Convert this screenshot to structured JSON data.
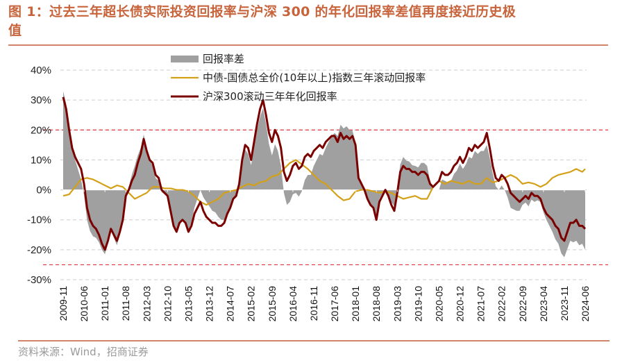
{
  "title": "图 1：过去三年超长债实际投资回报率与沪深 300 的年化回报率差值再度接近历史极值",
  "title_line1": "图 1：过去三年超长债实际投资回报率与沪深 300 的年化回报率差值再度接近历史极",
  "title_line2": "值",
  "source": "资料来源：Wind，招商证券",
  "colors": {
    "diff_fill": "#a0a0a0",
    "bond_line": "#d4a017",
    "equity_line": "#7a0000",
    "ref_line": "#e8323c",
    "grid": "#cccccc",
    "title": "#c8643c"
  },
  "chart_data": {
    "type": "area",
    "title": "过去三年超长债实际投资回报率与沪深300的年化回报率差值",
    "xlabel": "",
    "ylabel": "",
    "ylim": [
      -30,
      40
    ],
    "yticks": [
      40,
      30,
      20,
      10,
      0,
      -10,
      -20,
      -30
    ],
    "ytick_labels": [
      "40%",
      "30%",
      "20%",
      "10%",
      "0%",
      "-10%",
      "-20%",
      "-30%"
    ],
    "reference_lines": [
      20,
      -25
    ],
    "grid": true,
    "legend_position": "top-center",
    "x_start": "2009-11",
    "x_end": "2024-06",
    "x_tick_labels": [
      "2009-11",
      "2010-06",
      "2011-01",
      "2011-08",
      "2012-03",
      "2012-10",
      "2013-05",
      "2013-12",
      "2014-07",
      "2015-02",
      "2015-09",
      "2016-04",
      "2016-11",
      "2017-06",
      "2018-01",
      "2018-08",
      "2019-03",
      "2019-10",
      "2020-05",
      "2020-12",
      "2021-07",
      "2022-02",
      "2022-09",
      "2023-04",
      "2023-11",
      "2024-06"
    ],
    "legend": [
      "回报率差",
      "中债-国债总全价(10年以上)指数三年滚动回报率",
      "沪深300滚动三年年化回报率"
    ],
    "series": [
      {
        "name": "沪深300滚动三年年化回报率",
        "type": "line",
        "anchors": [
          [
            "2009-11",
            31
          ],
          [
            "2009-12",
            27
          ],
          [
            "2010-01",
            20
          ],
          [
            "2010-02",
            14
          ],
          [
            "2010-03",
            11
          ],
          [
            "2010-04",
            9
          ],
          [
            "2010-05",
            7
          ],
          [
            "2010-06",
            2
          ],
          [
            "2010-07",
            -6
          ],
          [
            "2010-08",
            -10
          ],
          [
            "2010-09",
            -12
          ],
          [
            "2010-10",
            -13
          ],
          [
            "2010-11",
            -15
          ],
          [
            "2010-12",
            -18
          ],
          [
            "2011-01",
            -20
          ],
          [
            "2011-02",
            -17
          ],
          [
            "2011-03",
            -13
          ],
          [
            "2011-04",
            -15
          ],
          [
            "2011-05",
            -17
          ],
          [
            "2011-06",
            -14
          ],
          [
            "2011-07",
            -10
          ],
          [
            "2011-08",
            -2
          ],
          [
            "2011-09",
            0
          ],
          [
            "2011-10",
            3
          ],
          [
            "2011-11",
            5
          ],
          [
            "2011-12",
            9
          ],
          [
            "2012-01",
            12
          ],
          [
            "2012-02",
            17
          ],
          [
            "2012-03",
            13
          ],
          [
            "2012-04",
            10
          ],
          [
            "2012-05",
            9
          ],
          [
            "2012-06",
            5
          ],
          [
            "2012-07",
            4
          ],
          [
            "2012-08",
            0
          ],
          [
            "2012-09",
            -1
          ],
          [
            "2012-10",
            -2
          ],
          [
            "2012-11",
            -7
          ],
          [
            "2012-12",
            -12
          ],
          [
            "2013-01",
            -14
          ],
          [
            "2013-02",
            -11
          ],
          [
            "2013-03",
            -10
          ],
          [
            "2013-04",
            -11
          ],
          [
            "2013-05",
            -14
          ],
          [
            "2013-06",
            -12
          ],
          [
            "2013-07",
            -8
          ],
          [
            "2013-08",
            -6
          ],
          [
            "2013-09",
            -4
          ],
          [
            "2013-10",
            -7
          ],
          [
            "2013-11",
            -9
          ],
          [
            "2013-12",
            -10
          ],
          [
            "2014-01",
            -11
          ],
          [
            "2014-02",
            -11
          ],
          [
            "2014-03",
            -12
          ],
          [
            "2014-04",
            -12
          ],
          [
            "2014-05",
            -11
          ],
          [
            "2014-06",
            -8
          ],
          [
            "2014-07",
            -6
          ],
          [
            "2014-08",
            -3
          ],
          [
            "2014-09",
            -2
          ],
          [
            "2014-10",
            2
          ],
          [
            "2014-11",
            10
          ],
          [
            "2014-12",
            15
          ],
          [
            "2015-01",
            14
          ],
          [
            "2015-02",
            10
          ],
          [
            "2015-03",
            16
          ],
          [
            "2015-04",
            22
          ],
          [
            "2015-05",
            27
          ],
          [
            "2015-06",
            30
          ],
          [
            "2015-07",
            25
          ],
          [
            "2015-08",
            19
          ],
          [
            "2015-09",
            16
          ],
          [
            "2015-10",
            20
          ],
          [
            "2015-11",
            18
          ],
          [
            "2015-12",
            14
          ],
          [
            "2016-01",
            6
          ],
          [
            "2016-02",
            3
          ],
          [
            "2016-03",
            5
          ],
          [
            "2016-04",
            8
          ],
          [
            "2016-05",
            9
          ],
          [
            "2016-06",
            7
          ],
          [
            "2016-07",
            8
          ],
          [
            "2016-08",
            11
          ],
          [
            "2016-09",
            12
          ],
          [
            "2016-10",
            11
          ],
          [
            "2016-11",
            13
          ],
          [
            "2016-12",
            14
          ],
          [
            "2017-01",
            15
          ],
          [
            "2017-02",
            14
          ],
          [
            "2017-03",
            16
          ],
          [
            "2017-04",
            17
          ],
          [
            "2017-05",
            18
          ],
          [
            "2017-06",
            18
          ],
          [
            "2017-07",
            16
          ],
          [
            "2017-08",
            19
          ],
          [
            "2017-09",
            17
          ],
          [
            "2017-10",
            18
          ],
          [
            "2017-11",
            17
          ],
          [
            "2017-12",
            18
          ],
          [
            "2018-01",
            15
          ],
          [
            "2018-02",
            4
          ],
          [
            "2018-03",
            2
          ],
          [
            "2018-04",
            0
          ],
          [
            "2018-05",
            -3
          ],
          [
            "2018-06",
            -5
          ],
          [
            "2018-07",
            -6
          ],
          [
            "2018-08",
            -10
          ],
          [
            "2018-09",
            -4
          ],
          [
            "2018-10",
            -2
          ],
          [
            "2018-11",
            0
          ],
          [
            "2018-12",
            -2
          ],
          [
            "2019-01",
            -5
          ],
          [
            "2019-02",
            -7
          ],
          [
            "2019-03",
            -1
          ],
          [
            "2019-04",
            6
          ],
          [
            "2019-05",
            8
          ],
          [
            "2019-06",
            7
          ],
          [
            "2019-07",
            7
          ],
          [
            "2019-08",
            6
          ],
          [
            "2019-09",
            6
          ],
          [
            "2019-10",
            5
          ],
          [
            "2019-11",
            6
          ],
          [
            "2019-12",
            6
          ],
          [
            "2020-01",
            5
          ],
          [
            "2020-02",
            2
          ],
          [
            "2020-03",
            1
          ],
          [
            "2020-04",
            2
          ],
          [
            "2020-05",
            3
          ],
          [
            "2020-06",
            6
          ],
          [
            "2020-07",
            5
          ],
          [
            "2020-08",
            5
          ],
          [
            "2020-09",
            6
          ],
          [
            "2020-10",
            8
          ],
          [
            "2020-11",
            9
          ],
          [
            "2020-12",
            11
          ],
          [
            "2021-01",
            9
          ],
          [
            "2021-02",
            11
          ],
          [
            "2021-03",
            14
          ],
          [
            "2021-04",
            13
          ],
          [
            "2021-05",
            15
          ],
          [
            "2021-06",
            14
          ],
          [
            "2021-07",
            15
          ],
          [
            "2021-08",
            16
          ],
          [
            "2021-09",
            19
          ],
          [
            "2021-10",
            14
          ],
          [
            "2021-11",
            8
          ],
          [
            "2021-12",
            4
          ],
          [
            "2022-01",
            3
          ],
          [
            "2022-02",
            5
          ],
          [
            "2022-03",
            4
          ],
          [
            "2022-04",
            2
          ],
          [
            "2022-05",
            -1
          ],
          [
            "2022-06",
            -2
          ],
          [
            "2022-07",
            -3
          ],
          [
            "2022-08",
            -4
          ],
          [
            "2022-09",
            -3
          ],
          [
            "2022-10",
            -2
          ],
          [
            "2022-11",
            -3
          ],
          [
            "2022-12",
            -1
          ],
          [
            "2023-01",
            -2
          ],
          [
            "2023-02",
            -2
          ],
          [
            "2023-03",
            -3
          ],
          [
            "2023-04",
            -6
          ],
          [
            "2023-05",
            -8
          ],
          [
            "2023-06",
            -9
          ],
          [
            "2023-07",
            -10
          ],
          [
            "2023-08",
            -12
          ],
          [
            "2023-09",
            -13
          ],
          [
            "2023-10",
            -16
          ],
          [
            "2023-11",
            -17
          ],
          [
            "2023-12",
            -14
          ],
          [
            "2024-01",
            -11
          ],
          [
            "2024-02",
            -11
          ],
          [
            "2024-03",
            -10
          ],
          [
            "2024-04",
            -12
          ],
          [
            "2024-05",
            -12
          ],
          [
            "2024-06",
            -13
          ]
        ]
      },
      {
        "name": "中债-国债总全价(10年以上)指数三年滚动回报率",
        "type": "line",
        "anchors": [
          [
            "2009-11",
            -2
          ],
          [
            "2010-01",
            -1.5
          ],
          [
            "2010-03",
            1
          ],
          [
            "2010-05",
            3.5
          ],
          [
            "2010-07",
            4
          ],
          [
            "2010-09",
            3.5
          ],
          [
            "2010-11",
            2.5
          ],
          [
            "2011-01",
            1.5
          ],
          [
            "2011-03",
            0.5
          ],
          [
            "2011-05",
            1.5
          ],
          [
            "2011-07",
            1
          ],
          [
            "2011-09",
            -1
          ],
          [
            "2011-11",
            -3
          ],
          [
            "2012-01",
            -2
          ],
          [
            "2012-03",
            -1
          ],
          [
            "2012-05",
            1
          ],
          [
            "2012-07",
            1
          ],
          [
            "2012-09",
            0.5
          ],
          [
            "2012-11",
            0.5
          ],
          [
            "2013-01",
            0
          ],
          [
            "2013-03",
            0
          ],
          [
            "2013-05",
            -0.5
          ],
          [
            "2013-07",
            -2
          ],
          [
            "2013-09",
            -4
          ],
          [
            "2013-11",
            -5
          ],
          [
            "2014-01",
            -4
          ],
          [
            "2014-03",
            -3
          ],
          [
            "2014-05",
            -1
          ],
          [
            "2014-07",
            -0.5
          ],
          [
            "2014-09",
            0
          ],
          [
            "2014-11",
            1
          ],
          [
            "2015-01",
            2
          ],
          [
            "2015-03",
            1.5
          ],
          [
            "2015-05",
            2.5
          ],
          [
            "2015-07",
            3
          ],
          [
            "2015-09",
            4.5
          ],
          [
            "2015-11",
            5
          ],
          [
            "2016-01",
            7
          ],
          [
            "2016-03",
            9
          ],
          [
            "2016-05",
            10
          ],
          [
            "2016-07",
            8.5
          ],
          [
            "2016-09",
            7
          ],
          [
            "2016-11",
            5
          ],
          [
            "2017-01",
            3
          ],
          [
            "2017-03",
            2
          ],
          [
            "2017-05",
            0
          ],
          [
            "2017-07",
            -2
          ],
          [
            "2017-09",
            -3.5
          ],
          [
            "2017-11",
            -3
          ],
          [
            "2018-01",
            -0.5
          ],
          [
            "2018-03",
            0
          ],
          [
            "2018-05",
            0
          ],
          [
            "2018-07",
            -0.5
          ],
          [
            "2018-09",
            -1
          ],
          [
            "2018-11",
            -0.5
          ],
          [
            "2019-01",
            -1
          ],
          [
            "2019-03",
            -2
          ],
          [
            "2019-05",
            -3
          ],
          [
            "2019-07",
            -2.5
          ],
          [
            "2019-09",
            -2
          ],
          [
            "2019-11",
            -3
          ],
          [
            "2020-01",
            -3
          ],
          [
            "2020-03",
            1
          ],
          [
            "2020-05",
            3
          ],
          [
            "2020-07",
            2
          ],
          [
            "2020-09",
            3
          ],
          [
            "2020-11",
            2.5
          ],
          [
            "2021-01",
            2
          ],
          [
            "2021-03",
            3
          ],
          [
            "2021-05",
            2
          ],
          [
            "2021-07",
            2
          ],
          [
            "2021-09",
            4
          ],
          [
            "2021-11",
            2.5
          ],
          [
            "2022-01",
            3
          ],
          [
            "2022-03",
            4
          ],
          [
            "2022-05",
            5
          ],
          [
            "2022-07",
            4
          ],
          [
            "2022-09",
            2
          ],
          [
            "2022-11",
            2.5
          ],
          [
            "2023-01",
            2
          ],
          [
            "2023-03",
            1
          ],
          [
            "2023-05",
            2
          ],
          [
            "2023-07",
            4
          ],
          [
            "2023-09",
            5
          ],
          [
            "2023-11",
            5.5
          ],
          [
            "2024-01",
            6
          ],
          [
            "2024-03",
            7
          ],
          [
            "2024-05",
            6
          ],
          [
            "2024-06",
            7
          ]
        ]
      },
      {
        "name": "回报率差",
        "type": "area",
        "definition": "沪深300滚动三年年化回报率 − 中债-国债总全价(10年以上)指数三年滚动回报率"
      }
    ]
  }
}
